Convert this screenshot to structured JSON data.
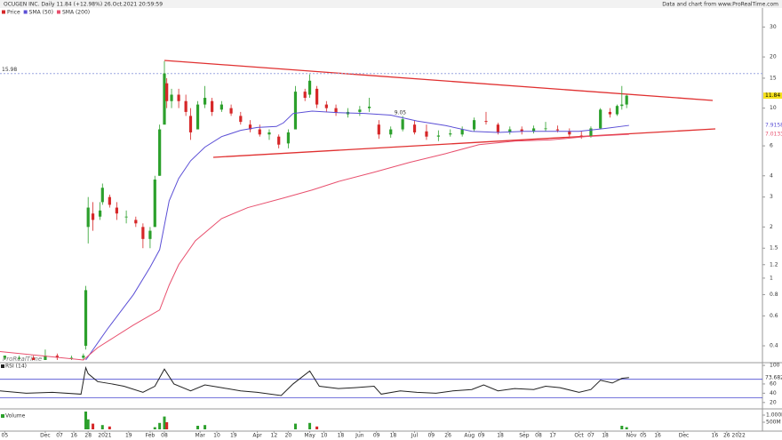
{
  "header": {
    "title": "OCUGEN INC. Daily 11.84 (+12.98%) 26.Oct.2021 20:59:59",
    "source": "Data and chart from www.ProRealTime.com",
    "watermark": "ProRealTime"
  },
  "chart_data": [
    {
      "type": "candlestick",
      "log_scale": true,
      "legend": "top-left",
      "ylim": [
        0.33,
        34
      ],
      "xlim": [
        0,
        320
      ],
      "yticks": [
        30,
        20,
        15,
        10,
        6,
        4,
        3,
        2,
        1.5,
        1.2,
        1,
        0.8,
        0.6,
        0.4
      ],
      "xticks": [
        {
          "value": 2,
          "label": "05"
        },
        {
          "value": 19,
          "label": "Dec"
        },
        {
          "value": 25,
          "label": "07"
        },
        {
          "value": 31,
          "label": "16"
        },
        {
          "value": 37,
          "label": "28"
        },
        {
          "value": 44,
          "label": "2021"
        },
        {
          "value": 54,
          "label": "19"
        },
        {
          "value": 63,
          "label": "Feb"
        },
        {
          "value": 69,
          "label": "08"
        },
        {
          "value": 84,
          "label": "Mar"
        },
        {
          "value": 91,
          "label": "10"
        },
        {
          "value": 98,
          "label": "19"
        },
        {
          "value": 108,
          "label": "Apr"
        },
        {
          "value": 115,
          "label": "12"
        },
        {
          "value": 121,
          "label": "20"
        },
        {
          "value": 130,
          "label": "May"
        },
        {
          "value": 136,
          "label": "10"
        },
        {
          "value": 143,
          "label": "18"
        },
        {
          "value": 151,
          "label": "Jun"
        },
        {
          "value": 158,
          "label": "09"
        },
        {
          "value": 165,
          "label": "18"
        },
        {
          "value": 174,
          "label": "Jul"
        },
        {
          "value": 181,
          "label": "09"
        },
        {
          "value": 188,
          "label": "26"
        },
        {
          "value": 197,
          "label": "Aug"
        },
        {
          "value": 202,
          "label": "09"
        },
        {
          "value": 210,
          "label": "18"
        },
        {
          "value": 220,
          "label": "Sep"
        },
        {
          "value": 226,
          "label": "08"
        },
        {
          "value": 232,
          "label": "17"
        },
        {
          "value": 243,
          "label": "Oct"
        },
        {
          "value": 248,
          "label": "07"
        },
        {
          "value": 254,
          "label": "18"
        },
        {
          "value": 265,
          "label": "Nov"
        },
        {
          "value": 270,
          "label": "05"
        },
        {
          "value": 276,
          "label": "16"
        },
        {
          "value": 287,
          "label": "Dec"
        },
        {
          "value": 300,
          "label": "16"
        },
        {
          "value": 305,
          "label": "26"
        },
        {
          "value": 310,
          "label": "2022"
        }
      ],
      "reference_line": 15.98,
      "swing_label": {
        "x": 168,
        "value": 9.05
      },
      "series": [
        {
          "name": "Price",
          "color": "#d62728",
          "up_color": "#2ca02c",
          "down_color": "#d62728",
          "x": [
            2,
            8,
            14,
            19,
            24,
            30,
            35,
            36,
            37,
            39,
            42,
            43,
            46,
            49,
            53,
            57,
            60,
            63,
            65,
            67,
            69,
            70,
            72,
            75,
            78,
            80,
            83,
            86,
            89,
            93,
            97,
            101,
            105,
            109,
            113,
            117,
            121,
            124,
            128,
            130,
            133,
            137,
            141,
            146,
            151,
            155,
            159,
            164,
            169,
            174,
            179,
            184,
            189,
            194,
            199,
            204,
            209,
            214,
            219,
            224,
            229,
            234,
            239,
            244,
            248,
            252,
            256,
            259,
            261,
            263
          ],
          "open": [
            0.34,
            0.34,
            0.34,
            0.33,
            0.35,
            0.34,
            0.34,
            0.4,
            2.0,
            2.4,
            2.3,
            2.8,
            3.0,
            2.6,
            2.3,
            2.2,
            2.0,
            1.7,
            2.0,
            4.0,
            8,
            14,
            11,
            12,
            11,
            9,
            7.5,
            10.5,
            11,
            9.8,
            10,
            9,
            8,
            7.5,
            7,
            6.8,
            6.2,
            7.5,
            12.5,
            12,
            13,
            10.5,
            10,
            9.2,
            9.5,
            10,
            8,
            7,
            7.5,
            8,
            7.3,
            6.8,
            7,
            7,
            7.5,
            8.4,
            8,
            7.2,
            7.5,
            7.3,
            7.6,
            7.5,
            7.3,
            6.9,
            6.8,
            7.6,
            9.5,
            9.2,
            10.3,
            10.5
          ],
          "high": [
            0.35,
            0.35,
            0.35,
            0.38,
            0.36,
            0.35,
            0.36,
            0.9,
            3,
            2.8,
            2.8,
            3.6,
            3.1,
            2.8,
            2.5,
            2.3,
            2.1,
            2.0,
            4.0,
            8.0,
            18.9,
            15,
            13,
            13,
            12,
            10,
            11,
            13.5,
            11.5,
            11,
            10.5,
            9.5,
            8.5,
            8,
            7.5,
            7,
            7.5,
            13.5,
            13,
            15.8,
            13.5,
            11,
            10.5,
            10,
            10.3,
            11.5,
            8.5,
            7.8,
            9,
            8.5,
            8,
            7.4,
            7.5,
            7.8,
            8.8,
            9.5,
            8.2,
            7.8,
            7.8,
            7.9,
            8.3,
            7.9,
            7.6,
            7.3,
            7.8,
            10,
            10,
            10.5,
            13.5,
            12
          ],
          "low": [
            0.33,
            0.33,
            0.33,
            0.33,
            0.33,
            0.33,
            0.33,
            0.38,
            1.6,
            1.9,
            2.2,
            2.7,
            2.6,
            2.2,
            2.1,
            2.0,
            1.5,
            1.5,
            2.0,
            4.0,
            8,
            10,
            10,
            10,
            9,
            6.5,
            7.5,
            10,
            9,
            9.5,
            9,
            8,
            7.2,
            6.8,
            6.5,
            5.8,
            5.8,
            7.5,
            11,
            11.5,
            10,
            9.5,
            9,
            8.8,
            9,
            9.5,
            6.6,
            6.7,
            7.3,
            7,
            6.5,
            6.4,
            6.8,
            6.8,
            7.3,
            8,
            7,
            7,
            7,
            7.1,
            7.3,
            7.2,
            6.8,
            6.6,
            6.7,
            7.5,
            8.8,
            9,
            9.8,
            10
          ],
          "close": [
            0.35,
            0.34,
            0.33,
            0.35,
            0.34,
            0.34,
            0.35,
            0.85,
            2.6,
            2.2,
            2.5,
            3.4,
            2.7,
            2.4,
            2.3,
            2.1,
            1.7,
            1.9,
            3.8,
            7.5,
            16,
            11,
            12,
            11,
            9.5,
            7.2,
            10.5,
            11.5,
            9.5,
            10.5,
            9.3,
            8.3,
            7.5,
            7.0,
            7.2,
            6.1,
            7.2,
            12.5,
            11.5,
            14.5,
            10.5,
            10,
            9.4,
            9.5,
            9.8,
            10.2,
            7,
            7.5,
            8.6,
            7.2,
            6.8,
            6.9,
            7.1,
            7.5,
            8.5,
            8.3,
            7.2,
            7.5,
            7.3,
            7.6,
            7.6,
            7.4,
            7.0,
            6.8,
            7.6,
            9.8,
            9.2,
            10.3,
            10.5,
            11.84
          ]
        },
        {
          "name": "SMA (50)",
          "color": "#5b4fd6",
          "x": [
            36,
            45,
            56,
            63,
            67,
            71,
            75,
            80,
            86,
            93,
            101,
            108,
            116,
            119,
            123,
            131,
            142,
            153,
            164,
            175,
            187,
            198,
            209,
            220,
            231,
            243,
            254,
            264
          ],
          "values": [
            0.33,
            0.5,
            0.8,
            1.16,
            1.47,
            2.85,
            3.86,
            4.9,
            5.9,
            6.8,
            7.4,
            7.7,
            7.8,
            8.2,
            9.3,
            9.6,
            9.4,
            9.3,
            9.1,
            8.4,
            7.9,
            7.3,
            7.2,
            7.3,
            7.3,
            7.3,
            7.6,
            7.9158
          ]
        },
        {
          "name": "SMA (200)",
          "color": "#e8506e",
          "x": [
            0,
            35,
            41,
            56,
            67,
            71,
            75,
            82,
            93,
            104,
            119,
            131,
            142,
            157,
            172,
            187,
            201,
            216,
            231,
            246,
            264
          ],
          "values": [
            0.37,
            0.33,
            0.39,
            0.53,
            0.65,
            0.91,
            1.2,
            1.66,
            2.24,
            2.6,
            2.96,
            3.3,
            3.7,
            4.2,
            4.8,
            5.4,
            6.1,
            6.4,
            6.5,
            6.8,
            7.0133
          ]
        }
      ]
    },
    {
      "type": "line",
      "title": "RSI (14)",
      "ylim": [
        12,
        102
      ],
      "yticks": [
        100,
        60,
        40,
        20
      ],
      "levels": [
        70,
        30
      ],
      "level_color": "#4a4ad0",
      "series": [
        {
          "name": "RSI (14)",
          "color": "#222",
          "x": [
            0,
            11,
            22,
            34,
            36,
            37,
            41,
            47,
            52,
            60,
            65,
            69,
            73,
            80,
            86,
            93,
            101,
            108,
            118,
            123,
            130,
            134,
            142,
            149,
            157,
            160,
            168,
            175,
            183,
            190,
            198,
            203,
            209,
            216,
            224,
            229,
            235,
            243,
            248,
            252,
            257,
            261,
            264
          ],
          "values": [
            45,
            40,
            42,
            38,
            95,
            82,
            65,
            60,
            55,
            42,
            55,
            92,
            60,
            45,
            58,
            52,
            45,
            42,
            35,
            60,
            88,
            55,
            50,
            52,
            55,
            38,
            45,
            42,
            40,
            45,
            48,
            58,
            45,
            50,
            48,
            55,
            52,
            42,
            48,
            68,
            62,
            72,
            73.682
          ]
        }
      ]
    },
    {
      "type": "bar",
      "title": "Volume",
      "ylim": [
        0,
        1312
      ],
      "yticks": [
        {
          "value": 1000,
          "label": "1.000M"
        },
        {
          "value": 500,
          "label": "500M"
        }
      ],
      "x": [
        36,
        37,
        39,
        43,
        46,
        65,
        67,
        69,
        70,
        83,
        86,
        124,
        130,
        133,
        261,
        263
      ],
      "values": [
        1250,
        700,
        400,
        300,
        200,
        150,
        450,
        900,
        500,
        250,
        300,
        400,
        450,
        200,
        250,
        150
      ],
      "colors": [
        "#2ca02c",
        "#2ca02c",
        "#d62728",
        "#2ca02c",
        "#d62728",
        "#2ca02c",
        "#2ca02c",
        "#2ca02c",
        "#d62728",
        "#2ca02c",
        "#2ca02c",
        "#2ca02c",
        "#2ca02c",
        "#d62728",
        "#2ca02c",
        "#2ca02c"
      ]
    }
  ]
}
